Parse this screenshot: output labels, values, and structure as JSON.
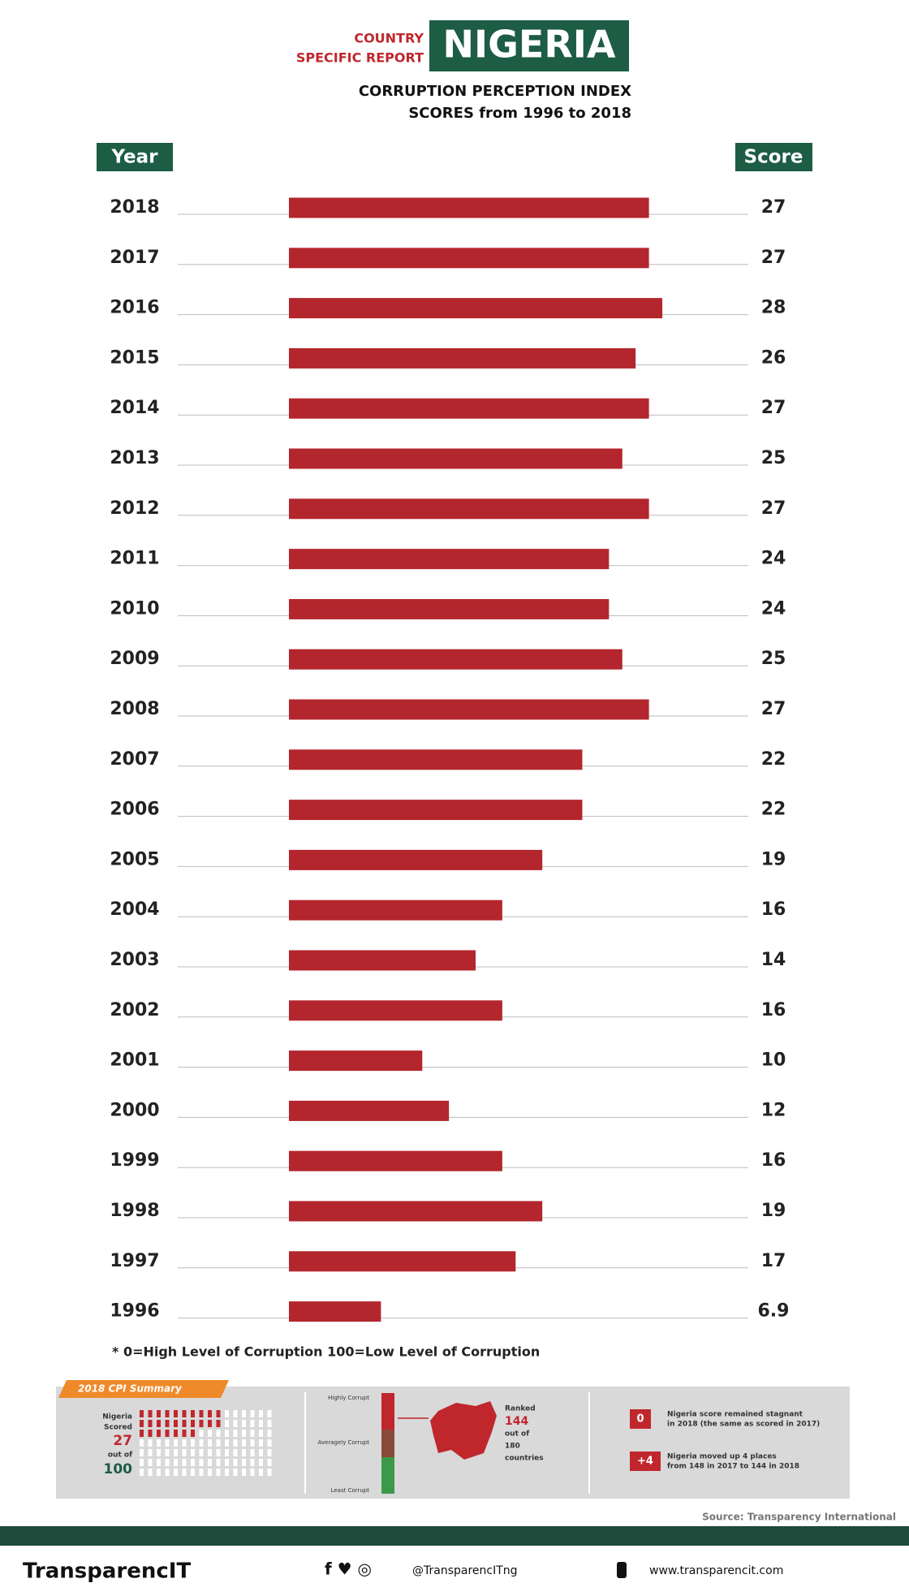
{
  "chart_data": {
    "type": "bar",
    "orientation": "horizontal",
    "header": {
      "kicker": [
        "COUNTRY",
        "SPECIFIC REPORT"
      ],
      "country": "NIGERIA",
      "title": "CORRUPTION PERCEPTION INDEX",
      "subtitle": "SCORES from 1996 to 2018"
    },
    "category_header": "Year",
    "value_header": "Score",
    "categories": [
      "2018",
      "2017",
      "2016",
      "2015",
      "2014",
      "2013",
      "2012",
      "2011",
      "2010",
      "2009",
      "2008",
      "2007",
      "2006",
      "2005",
      "2004",
      "2003",
      "2002",
      "2001",
      "2000",
      "1999",
      "1998",
      "1997",
      "1996"
    ],
    "values": [
      27,
      27,
      28,
      26,
      27,
      25,
      27,
      24,
      24,
      25,
      27,
      22,
      22,
      19,
      16,
      14,
      16,
      10,
      12,
      16,
      19,
      17,
      6.9
    ],
    "color": "#b3262d",
    "note": "* 0=High Level of Corruption 100=Low Level of Corruption",
    "source": "Source: Transparency International"
  },
  "summary": {
    "tag": "2018 CPI Summary",
    "scored": [
      "Nigeria",
      "Scored",
      "27",
      "out of",
      "100"
    ],
    "gauge": [
      "Highly Corrupt",
      "Averagely Corrupt",
      "Least Corrupt"
    ],
    "ranked": [
      "Ranked",
      "144",
      "out of",
      "180",
      "countries"
    ],
    "notes": [
      {
        "badge": "0",
        "lines": [
          "Nigeria score remained stagnant",
          "in 2018 (the same as scored in 2017)"
        ]
      },
      {
        "badge": "+4",
        "lines": [
          "Nigeria moved up 4 places",
          "from 148 in 2017 to 144 in 2018"
        ]
      }
    ]
  },
  "footer": {
    "brand": "TransparencIT",
    "handle": "@TransparencITng",
    "site": "www.transparencit.com"
  }
}
